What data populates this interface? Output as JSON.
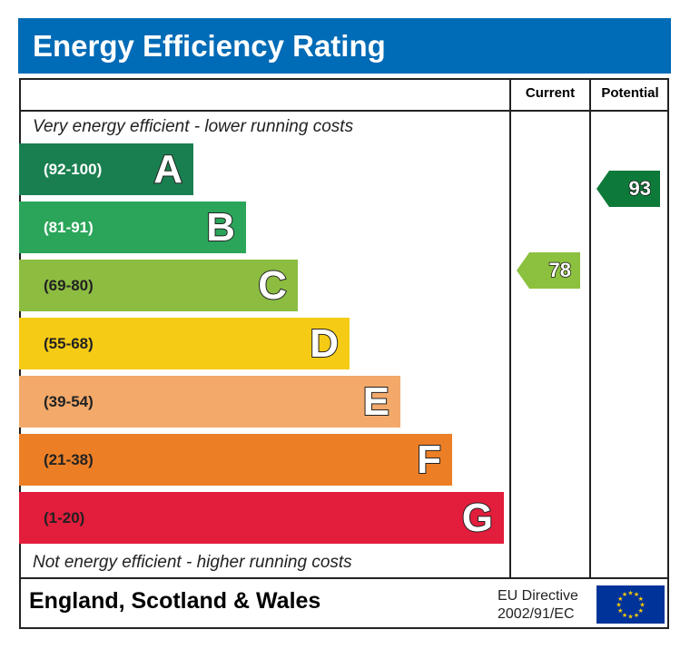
{
  "title": "Energy Efficiency Rating",
  "columns": {
    "current": "Current",
    "potential": "Potential"
  },
  "top_note": "Very energy efficient - lower running costs",
  "bottom_note": "Not energy efficient - higher running costs",
  "footer": {
    "region": "England, Scotland & Wales",
    "directive_line1": "EU Directive",
    "directive_line2": "2002/91/EC",
    "flag_icon": "eu-flag-icon"
  },
  "chart_data": {
    "type": "bar",
    "bands": [
      {
        "letter": "A",
        "range": "(92-100)",
        "color": "#1a7f50",
        "range_color": "#ffffff"
      },
      {
        "letter": "B",
        "range": "(81-91)",
        "color": "#2aa55a",
        "range_color": "#ffffff"
      },
      {
        "letter": "C",
        "range": "(69-80)",
        "color": "#8cbd41",
        "range_color": "#222222"
      },
      {
        "letter": "D",
        "range": "(55-68)",
        "color": "#f6cb15",
        "range_color": "#222222"
      },
      {
        "letter": "E",
        "range": "(39-54)",
        "color": "#f2a96a",
        "range_color": "#222222"
      },
      {
        "letter": "F",
        "range": "(21-38)",
        "color": "#ec7f26",
        "range_color": "#222222"
      },
      {
        "letter": "G",
        "range": "(1-20)",
        "color": "#e31d3c",
        "range_color": "#222222"
      }
    ],
    "current": {
      "value": "78",
      "band": "C",
      "color": "#8cc13f"
    },
    "potential": {
      "value": "93",
      "band": "A",
      "color": "#0d7a3a"
    }
  }
}
